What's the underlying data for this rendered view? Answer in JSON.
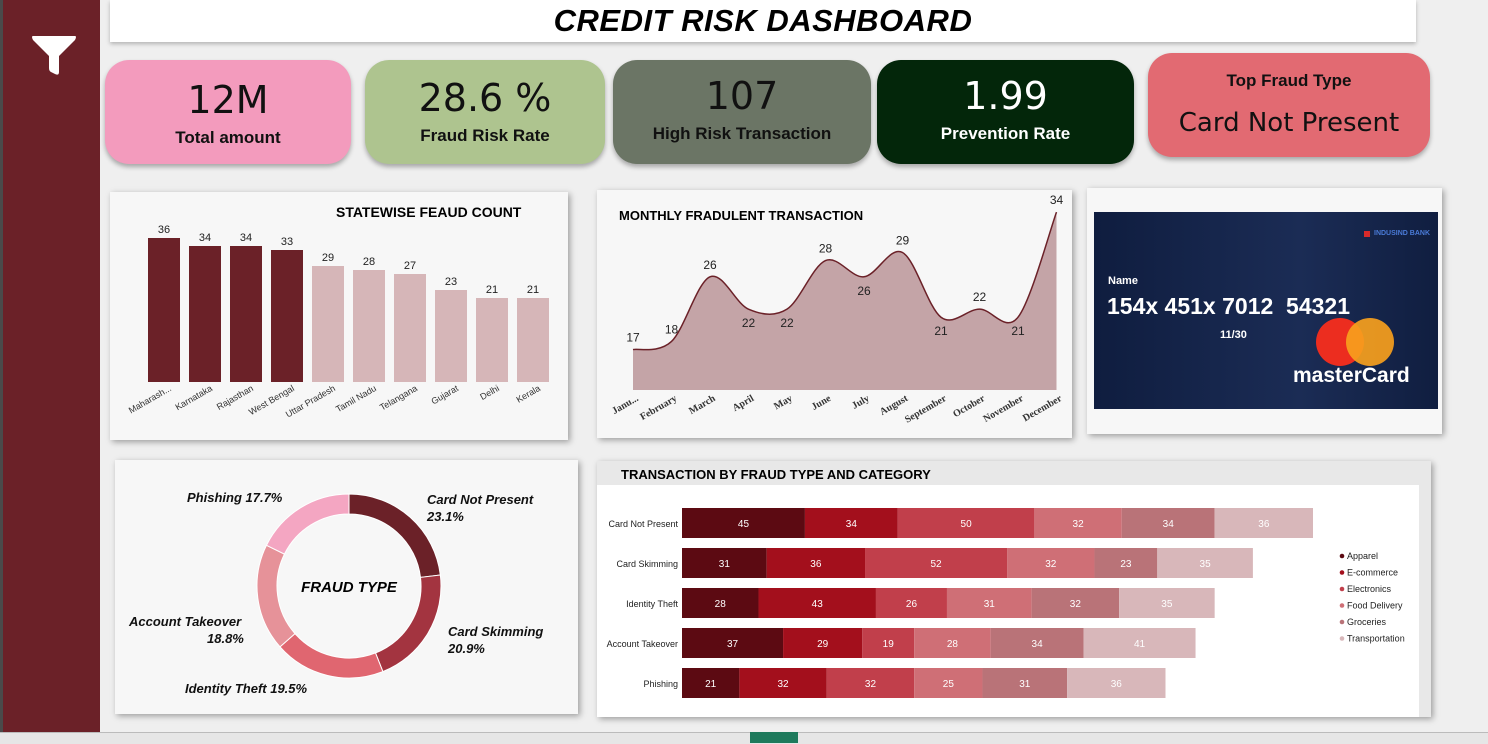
{
  "header": {
    "title": "CREDIT RISK DASHBOARD"
  },
  "sidebar": {
    "icon": "filter-icon"
  },
  "kpis": [
    {
      "value": "12M",
      "label": "Total amount",
      "color": "#f39bbd"
    },
    {
      "value": "28.6 %",
      "label": "Fraud Risk Rate",
      "color": "#aec48f"
    },
    {
      "value": "107",
      "label": "High Risk Transaction",
      "color": "#6b7565"
    },
    {
      "value": "1.99",
      "label": "Prevention Rate",
      "color": "#03260a"
    },
    {
      "value": "Card Not Present",
      "label": "Top Fraud Type",
      "color": "#e26a72"
    }
  ],
  "card": {
    "name_label": "Name",
    "number": "154x 451x 7012  54321",
    "expiry": "11/30",
    "brand": "masterCard",
    "bank_logo_text": "INDUSIND BANK"
  },
  "chart_data": [
    {
      "type": "bar",
      "title": "STATEWISE FEAUD COUNT",
      "categories": [
        "Maharash...",
        "Karnataka",
        "Rajasthan",
        "West Bengal",
        "Uttar Pradesh",
        "Tamil Nadu",
        "Telangana",
        "Gujarat",
        "Delhi",
        "Kerala"
      ],
      "values": [
        36,
        34,
        34,
        33,
        29,
        28,
        27,
        23,
        21,
        21
      ],
      "colors": {
        "top": "#6b2128",
        "rest": "#d6b6b8"
      },
      "highlight_count": 4,
      "ylim": [
        0,
        40
      ]
    },
    {
      "type": "area",
      "title": "MONTHLY FRADULENT TRANSACTION",
      "categories": [
        "Janu...",
        "February",
        "March",
        "April",
        "May",
        "June",
        "July",
        "August",
        "September",
        "October",
        "November",
        "December"
      ],
      "values": [
        17,
        18,
        26,
        22,
        22,
        28,
        26,
        29,
        21,
        22,
        21,
        34
      ],
      "colors": {
        "fill": "#c4a4a7",
        "line": "#6b2128"
      },
      "ylim": [
        12,
        35
      ]
    },
    {
      "type": "pie",
      "title": "FRAUD TYPE",
      "slices": [
        {
          "label": "Card Not Present",
          "percent": "23.1%",
          "value": 23.1,
          "color": "#6b2128"
        },
        {
          "label": "Card Skimming",
          "percent": "20.9%",
          "value": 20.9,
          "color": "#a33440"
        },
        {
          "label": "Identity Theft",
          "percent": "19.5%",
          "value": 19.5,
          "color": "#e06670"
        },
        {
          "label": "Account Takeover",
          "percent": "18.8%",
          "value": 18.8,
          "color": "#e69299"
        },
        {
          "label": "Phishing",
          "percent": "17.7%",
          "value": 17.7,
          "color": "#f4a6c2"
        }
      ]
    },
    {
      "type": "bar",
      "orientation": "horizontal-stacked",
      "title": "TRANSACTION BY FRAUD TYPE AND CATEGORY",
      "categories": [
        "Card Not Present",
        "Card Skimming",
        "Identity Theft",
        "Account Takeover",
        "Phishing"
      ],
      "series": [
        {
          "name": "Apparel",
          "values": [
            45,
            31,
            28,
            37,
            21
          ],
          "color": "#5c0a12"
        },
        {
          "name": "E-commerce",
          "values": [
            34,
            36,
            43,
            29,
            32
          ],
          "color": "#a30f1c"
        },
        {
          "name": "Electronics",
          "values": [
            50,
            52,
            26,
            19,
            32
          ],
          "color": "#c13f4b"
        },
        {
          "name": "Food Delivery",
          "values": [
            32,
            32,
            31,
            28,
            25
          ],
          "color": "#cf6f76"
        },
        {
          "name": "Groceries",
          "values": [
            34,
            23,
            32,
            34,
            31
          ],
          "color": "#b97378"
        },
        {
          "name": "Transportation",
          "values": [
            36,
            35,
            35,
            41,
            36
          ],
          "color": "#d8b7ba"
        }
      ],
      "legend_position": "right"
    }
  ]
}
